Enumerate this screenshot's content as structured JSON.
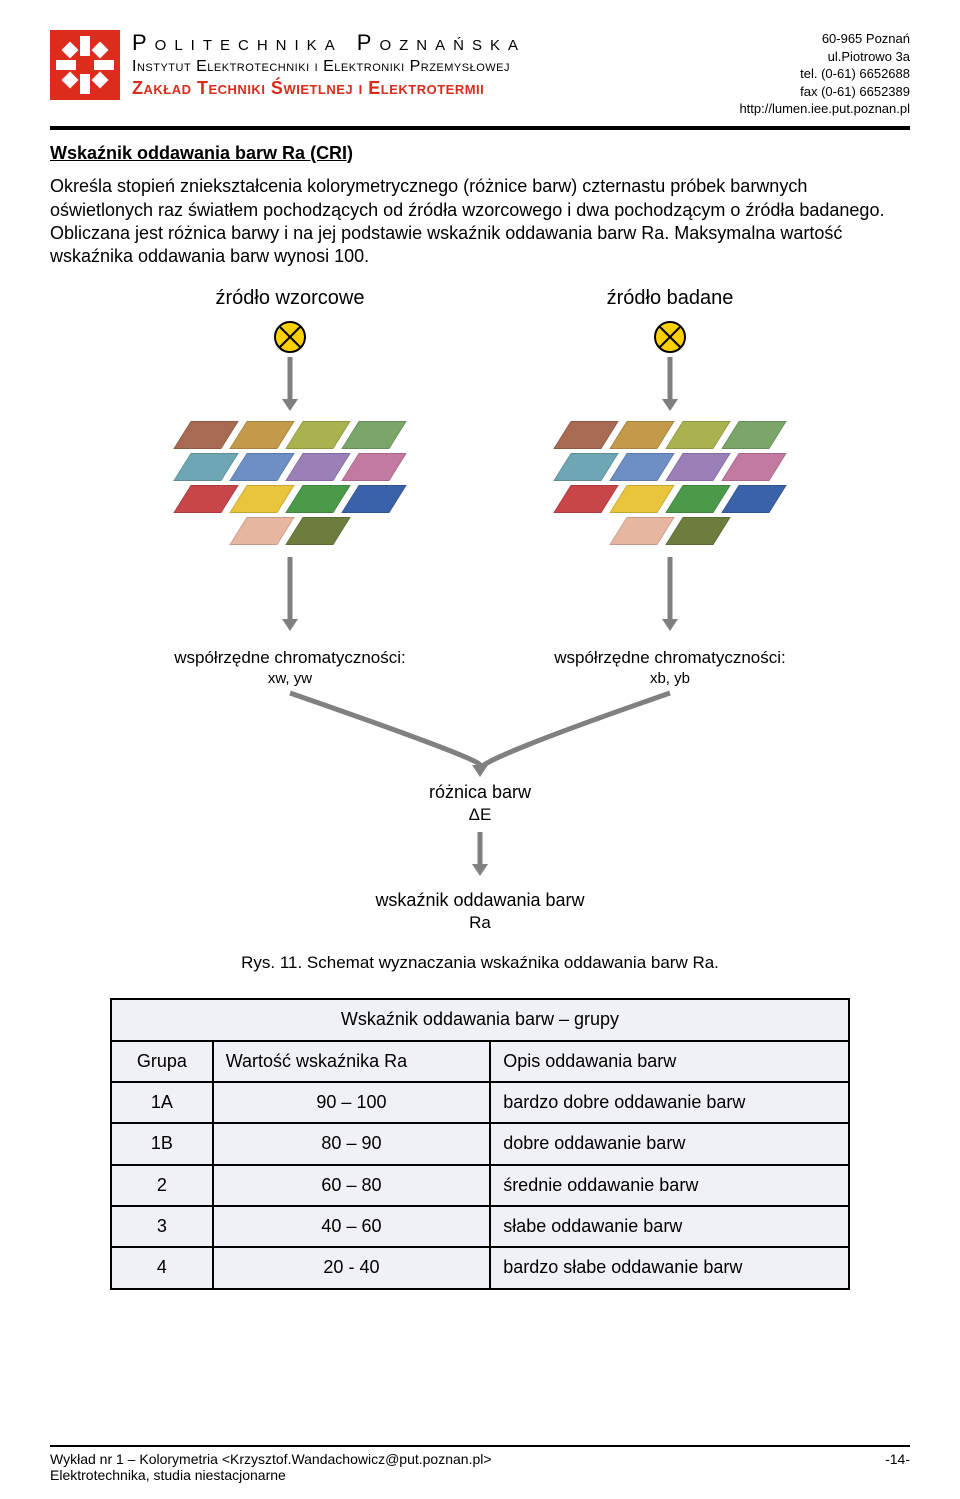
{
  "header": {
    "uni_line1": "Politechnika Poznańska",
    "uni_line2": "Instytut Elektrotechniki i Elektroniki Przemysłowej",
    "uni_line3": "Zakład Techniki Świetlnej i Elektrotermii",
    "addr1": "60-965 Poznań",
    "addr2": "ul.Piotrowo 3a",
    "addr3": "tel. (0-61) 6652688",
    "addr4": "fax (0-61) 6652389",
    "addr5": "http://lumen.iee.put.poznan.pl",
    "logo_colors": {
      "bg": "#dd2c1b",
      "fg": "#ffffff"
    }
  },
  "section": {
    "title": "Wskaźnik oddawania barw Ra (CRI)",
    "para": "Określa stopień zniekształcenia kolorymetrycznego (różnice barw) czternastu próbek barwnych oświetlonych raz światłem pochodzących od źródła wzorcowego i dwa pochodzącym o źródła badanego. Obliczana jest różnica barwy i na jej podstawie wskaźnik oddawania barw Ra. Maksymalna wartość wskaźnika oddawania barw wynosi 100."
  },
  "diagram": {
    "left_label": "źródło wzorcowe",
    "right_label": "źródło badane",
    "lamp_color": "#ffd000",
    "arrow_color": "#808080",
    "swatch_colors_left": [
      [
        "#a66b52",
        "#c29a4a",
        "#a9b24e",
        "#7aa66a"
      ],
      [
        "#6ea7b3",
        "#6d8fc3",
        "#9b7fb8",
        "#c37aa0"
      ],
      [
        "#c8454a",
        "#e9c53d",
        "#4a9a4a",
        "#3a62a8"
      ],
      [
        "#e7b6a0",
        "#6d7d3e"
      ]
    ],
    "swatch_colors_right": [
      [
        "#a66b52",
        "#c29a4a",
        "#a9b24e",
        "#7aa66a"
      ],
      [
        "#6ea7b3",
        "#6d8fc3",
        "#9b7fb8",
        "#c37aa0"
      ],
      [
        "#c8454a",
        "#e9c53d",
        "#4a9a4a",
        "#3a62a8"
      ],
      [
        "#e7b6a0",
        "#6d7d3e"
      ]
    ],
    "coord_label": "współrzędne chromatyczności:",
    "coord_left": "xw, yw",
    "coord_right": "xb, yb",
    "diff_label": "różnica barw",
    "diff_sym": "ΔE",
    "ra_label": "wskaźnik oddawania barw",
    "ra_sym": "Ra"
  },
  "caption": "Rys. 11. Schemat wyznaczania wskaźnika oddawania barw Ra.",
  "table": {
    "title": "Wskaźnik oddawania barw – grupy",
    "col1": "Grupa",
    "col2": "Wartość wskaźnika Ra",
    "col3": "Opis oddawania barw",
    "rows": [
      {
        "g": "1A",
        "v": "90 – 100",
        "d": "bardzo dobre oddawanie barw"
      },
      {
        "g": "1B",
        "v": "80 – 90",
        "d": "dobre oddawanie barw"
      },
      {
        "g": "2",
        "v": "60 – 80",
        "d": "średnie oddawanie barw"
      },
      {
        "g": "3",
        "v": "40 – 60",
        "d": "słabe oddawanie barw"
      },
      {
        "g": "4",
        "v": "20 - 40",
        "d": "bardzo słabe oddawanie barw"
      }
    ],
    "bg": "#f0f0f7",
    "border": "#000000"
  },
  "footer": {
    "left1": "Wykład nr 1 – Kolorymetria  <Krzysztof.Wandachowicz@put.poznan.pl>",
    "left2": "Elektrotechnika, studia niestacjonarne",
    "right": "-14-"
  }
}
